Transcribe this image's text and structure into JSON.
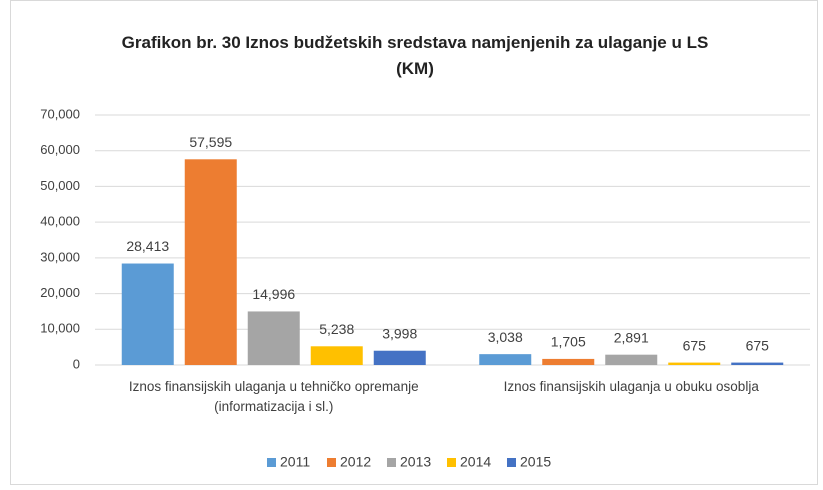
{
  "chart_data": {
    "type": "bar",
    "title": "Grafikon br. 30 Iznos budžetskih sredstava namjenjenih za ulaganje u LS (KM)",
    "categories": [
      "Iznos finansijskih ulaganja u tehničko opremanje (informatizacija i sl.)",
      "Iznos finansijskih ulaganja u obuku osoblja"
    ],
    "series": [
      {
        "name": "2011",
        "color": "#5b9bd5",
        "values": [
          28413,
          3038
        ],
        "value_labels": [
          "28,413",
          "3,038"
        ]
      },
      {
        "name": "2012",
        "color": "#ed7d31",
        "values": [
          57595,
          1705
        ],
        "value_labels": [
          "57,595",
          "1,705"
        ]
      },
      {
        "name": "2013",
        "color": "#a5a5a5",
        "values": [
          14996,
          2891
        ],
        "value_labels": [
          "14,996",
          "2,891"
        ]
      },
      {
        "name": "2014",
        "color": "#ffc000",
        "values": [
          5238,
          675
        ],
        "value_labels": [
          "5,238",
          "675"
        ]
      },
      {
        "name": "2015",
        "color": "#4472c4",
        "values": [
          3998,
          675
        ],
        "value_labels": [
          "3,998",
          "675"
        ]
      }
    ],
    "ylim": [
      0,
      70000
    ],
    "yticks": [
      0,
      {
        "value": 10000,
        "label": "10,000"
      },
      {
        "value": 20000,
        "label": "20,000"
      },
      {
        "value": 30000,
        "label": "30,000"
      },
      {
        "value": 40000,
        "label": "40,000"
      },
      {
        "value": 50000,
        "label": "50,000"
      },
      {
        "value": 60000,
        "label": "60,000"
      },
      {
        "value": 70000,
        "label": "70,000"
      }
    ],
    "legend": "bottom"
  }
}
